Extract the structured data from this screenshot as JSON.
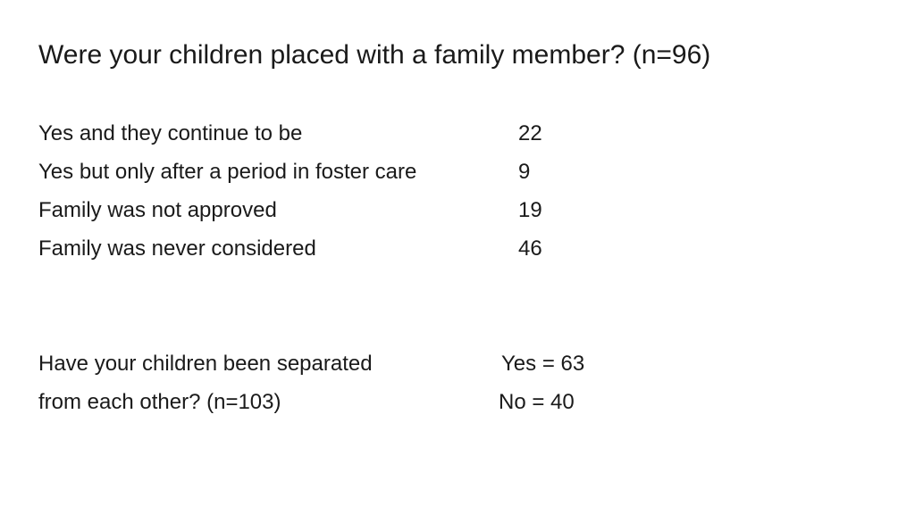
{
  "title": "Were your children placed with a family member? (n=96)",
  "placement_table": {
    "rows": [
      {
        "label": "Yes and they continue to be",
        "value": "22"
      },
      {
        "label": "Yes but only after a period in foster care",
        "value": "9"
      },
      {
        "label": "Family was not approved",
        "value": "19"
      },
      {
        "label": "Family was never considered",
        "value": "46"
      }
    ]
  },
  "separation": {
    "question_line1": "Have your children been separated",
    "question_line2": "from each other? (n=103)",
    "answer_yes": "Yes = 63",
    "answer_no": "No =  40"
  }
}
